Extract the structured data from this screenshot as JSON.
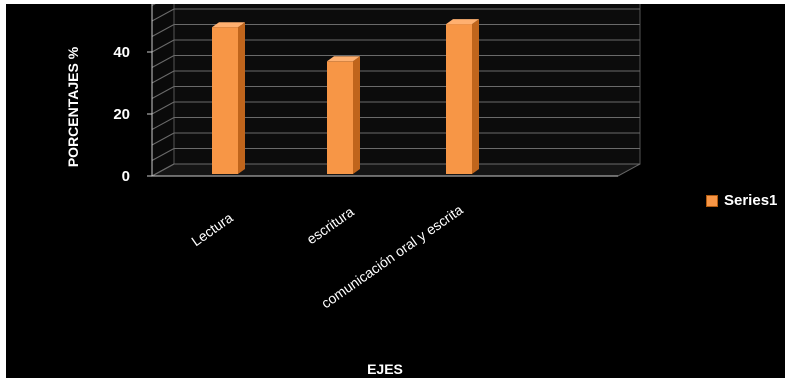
{
  "chart_data": {
    "type": "bar",
    "categories": [
      "Lectura",
      "escritura",
      "comunicación oral y escrita"
    ],
    "series": [
      {
        "name": "Series1",
        "values": [
          48,
          37,
          49
        ],
        "color": "#f79646"
      }
    ],
    "xlabel": "EJES",
    "ylabel": "PORCENTAJES %",
    "ylim": [
      0,
      60
    ],
    "yticks": [
      "0",
      "20",
      "40",
      "60"
    ],
    "grid": true,
    "legend": "right",
    "background": "#000000",
    "style": "3d"
  }
}
